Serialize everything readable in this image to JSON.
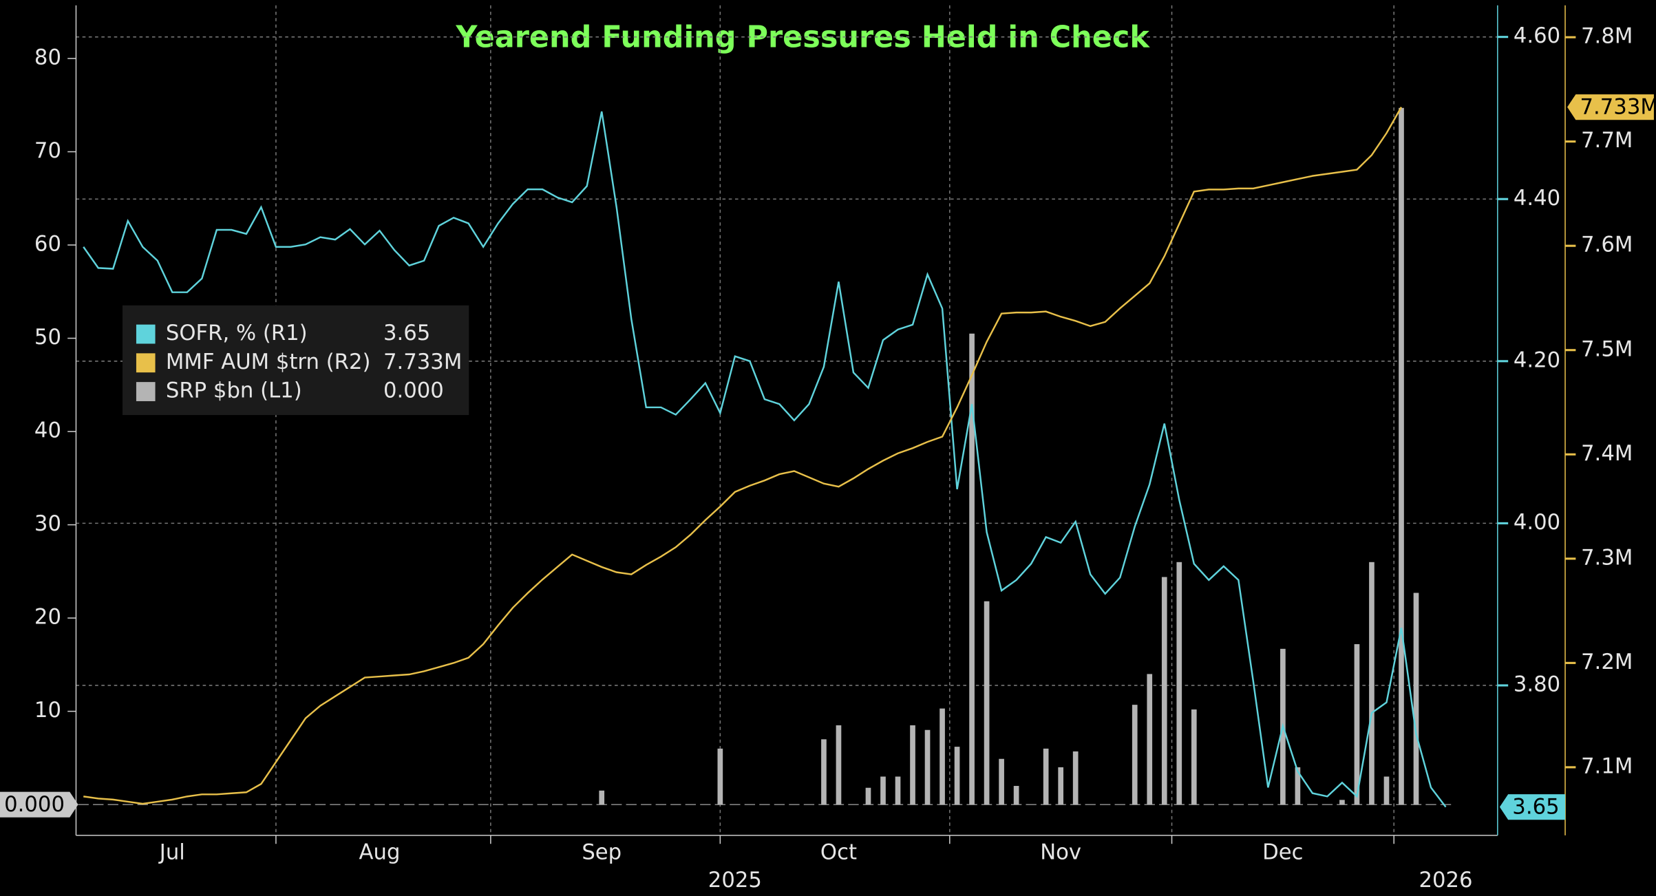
{
  "chart_data": {
    "type": "combo",
    "title": "Yearend Funding Pressures Held in Check",
    "categories": [
      null,
      null,
      null,
      null,
      null,
      null,
      "Jul",
      null,
      null,
      null,
      null,
      null,
      null,
      null,
      null,
      null,
      null,
      null,
      null,
      null,
      "Aug",
      null,
      null,
      null,
      null,
      null,
      null,
      null,
      null,
      null,
      null,
      null,
      null,
      null,
      null,
      "Sep",
      null,
      null,
      null,
      null,
      null,
      null,
      null,
      null,
      null,
      null,
      null,
      null,
      null,
      null,
      null,
      "Oct",
      null,
      null,
      null,
      null,
      null,
      null,
      null,
      null,
      null,
      null,
      null,
      null,
      null,
      null,
      "Nov",
      null,
      null,
      null,
      null,
      null,
      null,
      null,
      null,
      null,
      null,
      null,
      null,
      null,
      null,
      "Dec",
      null,
      null,
      null,
      null,
      null,
      null,
      null,
      null,
      null,
      null,
      null,
      null,
      null,
      null
    ],
    "year_categories": [
      null,
      null,
      null,
      null,
      null,
      null,
      null,
      null,
      null,
      null,
      null,
      null,
      null,
      null,
      null,
      null,
      null,
      null,
      null,
      null,
      null,
      null,
      null,
      null,
      null,
      null,
      null,
      null,
      null,
      null,
      null,
      null,
      null,
      null,
      null,
      null,
      null,
      null,
      null,
      null,
      null,
      null,
      null,
      null,
      "2025",
      null,
      null,
      null,
      null,
      null,
      null,
      null,
      null,
      null,
      null,
      null,
      null,
      null,
      null,
      null,
      null,
      null,
      null,
      null,
      null,
      null,
      null,
      null,
      null,
      null,
      null,
      null,
      null,
      null,
      null,
      null,
      null,
      null,
      null,
      null,
      null,
      null,
      null,
      null,
      null,
      null,
      null,
      null,
      null,
      null,
      null,
      null,
      "2026",
      null,
      null,
      null
    ],
    "ylim": [
      -3.3,
      85.7
    ],
    "yticks": [
      10,
      20,
      30,
      40,
      50,
      60,
      70,
      80
    ],
    "y2lim": [
      3.615,
      4.639
    ],
    "y2ticks": [
      {
        "value": 3.8,
        "label": "3.80"
      },
      {
        "value": 4.0,
        "label": "4.00"
      },
      {
        "value": 4.2,
        "label": "4.20"
      },
      {
        "value": 4.4,
        "label": "4.40"
      },
      {
        "value": 4.6,
        "label": "4.60"
      }
    ],
    "y3lim": [
      7.0347,
      7.8306
    ],
    "y3ticks": [
      {
        "value": 7.1,
        "label": "7.1M"
      },
      {
        "value": 7.2,
        "label": "7.2M"
      },
      {
        "value": 7.3,
        "label": "7.3M"
      },
      {
        "value": 7.4,
        "label": "7.4M"
      },
      {
        "value": 7.5,
        "label": "7.5M"
      },
      {
        "value": 7.6,
        "label": "7.6M"
      },
      {
        "value": 7.7,
        "label": "7.7M"
      },
      {
        "value": 7.8,
        "label": "7.8M"
      }
    ],
    "grid": true,
    "series": [
      {
        "name": "SOFR, % (R1)",
        "type": "line",
        "axis": "y2",
        "color": "#5fd3dc",
        "last_value_label": "3.65",
        "values": [
          4.341,
          4.315,
          4.314,
          4.373,
          4.341,
          4.324,
          4.285,
          4.285,
          4.302,
          4.362,
          4.362,
          4.357,
          4.39,
          4.341,
          4.341,
          4.344,
          4.353,
          4.35,
          4.363,
          4.344,
          4.361,
          4.337,
          4.318,
          4.324,
          4.367,
          4.377,
          4.37,
          4.341,
          4.37,
          4.394,
          4.412,
          4.412,
          4.402,
          4.396,
          4.416,
          4.508,
          4.39,
          4.252,
          4.143,
          4.143,
          4.134,
          4.153,
          4.173,
          4.136,
          4.206,
          4.2,
          4.153,
          4.147,
          4.127,
          4.147,
          4.193,
          4.298,
          4.186,
          4.167,
          4.226,
          4.239,
          4.245,
          4.307,
          4.265,
          4.042,
          4.147,
          3.989,
          3.917,
          3.93,
          3.95,
          3.983,
          3.976,
          4.002,
          3.937,
          3.913,
          3.933,
          3.996,
          4.048,
          4.123,
          4.029,
          3.95,
          3.93,
          3.947,
          3.93,
          3.805,
          3.674,
          3.75,
          3.694,
          3.667,
          3.663,
          3.68,
          3.663,
          3.766,
          3.779,
          3.871,
          3.74,
          3.674,
          3.65,
          null,
          null,
          null
        ]
      },
      {
        "name": "MMF AUM $trn (R2)",
        "type": "line",
        "axis": "y3",
        "color": "#e8c04a",
        "last_value_label": "7.733M",
        "values": [
          7.072,
          7.07,
          7.069,
          7.067,
          7.065,
          7.067,
          7.069,
          7.072,
          7.074,
          7.074,
          7.075,
          7.076,
          7.084,
          7.105,
          7.126,
          7.147,
          7.159,
          7.168,
          7.177,
          7.186,
          7.187,
          7.188,
          7.189,
          7.192,
          7.196,
          7.2,
          7.205,
          7.218,
          7.236,
          7.253,
          7.267,
          7.28,
          7.292,
          7.304,
          7.298,
          7.292,
          7.287,
          7.285,
          7.294,
          7.302,
          7.311,
          7.323,
          7.337,
          7.35,
          7.364,
          7.37,
          7.375,
          7.381,
          7.384,
          7.378,
          7.372,
          7.369,
          7.377,
          7.386,
          7.394,
          7.401,
          7.406,
          7.412,
          7.417,
          7.445,
          7.476,
          7.508,
          7.535,
          7.536,
          7.536,
          7.537,
          7.532,
          7.528,
          7.523,
          7.527,
          7.54,
          7.552,
          7.564,
          7.59,
          7.621,
          7.652,
          7.654,
          7.654,
          7.655,
          7.655,
          7.658,
          7.661,
          7.664,
          7.667,
          7.669,
          7.671,
          7.673,
          7.687,
          7.708,
          7.733,
          null,
          null,
          null,
          null,
          null,
          null
        ]
      },
      {
        "name": "SRP $bn (L1)",
        "type": "bar",
        "axis": "y",
        "color": "#b4b4b4",
        "last_value_label": "0.000",
        "values": [
          0,
          0,
          0,
          0,
          0,
          0,
          0,
          0,
          0,
          0,
          0,
          0,
          0,
          0,
          0,
          0,
          0,
          0,
          0,
          0,
          0,
          0,
          0,
          0,
          0,
          0,
          0,
          0,
          0,
          0,
          0,
          0,
          0,
          0,
          0,
          1.5,
          0,
          0,
          0,
          0,
          0,
          0,
          0,
          6,
          0,
          0,
          0,
          0,
          0,
          0,
          7,
          8.5,
          0,
          1.8,
          3,
          3,
          8.5,
          8,
          10.3,
          6.2,
          50.5,
          21.8,
          4.9,
          2,
          0,
          6,
          4,
          5.7,
          0,
          0,
          0,
          10.7,
          14,
          24.4,
          26,
          10.2,
          0,
          0,
          0,
          0,
          0,
          16.7,
          4,
          0,
          0,
          0.5,
          17.2,
          26,
          3,
          74.7,
          22.7,
          0,
          0,
          null,
          null,
          null
        ]
      }
    ]
  }
}
